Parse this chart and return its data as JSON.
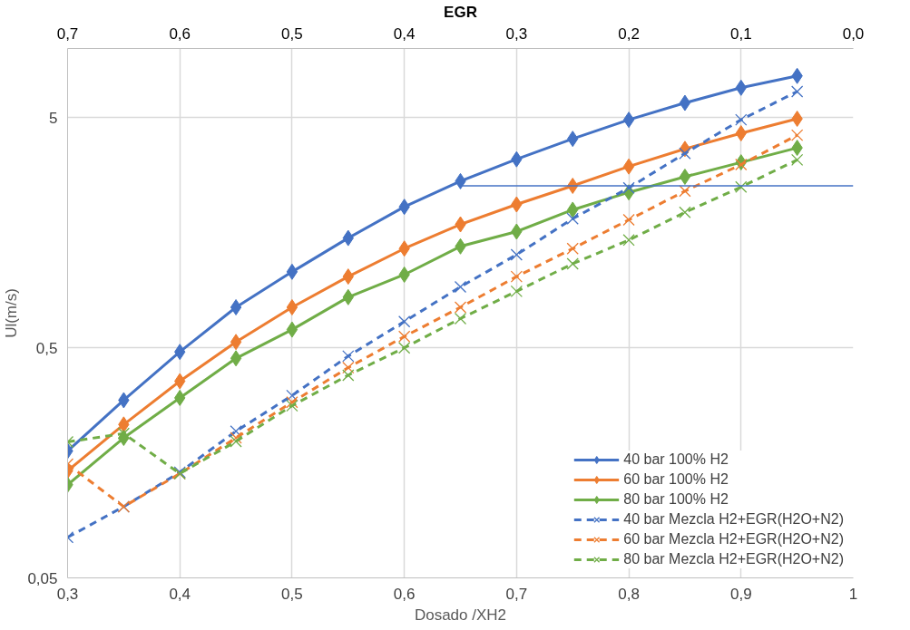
{
  "chart_data": {
    "type": "line",
    "xlabel": "Dosado /XH2",
    "ylabel": "Ul(m/s)",
    "x2label": "EGR",
    "x": [
      0.3,
      0.35,
      0.4,
      0.45,
      0.5,
      0.55,
      0.6,
      0.65,
      0.7,
      0.75,
      0.8,
      0.85,
      0.9,
      0.95
    ],
    "xlim": [
      0.3,
      1
    ],
    "xticks": [
      {
        "value": 0.3,
        "label": "0,3"
      },
      {
        "value": 0.4,
        "label": "0,4"
      },
      {
        "value": 0.5,
        "label": "0,5"
      },
      {
        "value": 0.6,
        "label": "0,6"
      },
      {
        "value": 0.7,
        "label": "0,7"
      },
      {
        "value": 0.8,
        "label": "0,8"
      },
      {
        "value": 0.9,
        "label": "0,9"
      },
      1
    ],
    "x2lim": [
      0.7,
      0.0
    ],
    "x2ticks": [
      {
        "value": 0.7,
        "label": "0,7"
      },
      {
        "value": 0.6,
        "label": "0,6"
      },
      {
        "value": 0.5,
        "label": "0,5"
      },
      {
        "value": 0.4,
        "label": "0,4"
      },
      {
        "value": 0.3,
        "label": "0,3"
      },
      {
        "value": 0.2,
        "label": "0,2"
      },
      {
        "value": 0.1,
        "label": "0,1"
      },
      {
        "value": 0.0,
        "label": "0,0"
      }
    ],
    "log": "y",
    "ylim": [
      0.05,
      10
    ],
    "yticks": [
      {
        "value": 0.05,
        "label": "0,05"
      },
      {
        "value": 0.5,
        "label": "0,5"
      },
      5
    ],
    "grid": true,
    "legend": "bottom right",
    "series": [
      {
        "name": "40 bar 100% H2",
        "color": "#4472c4",
        "marker": "diamond",
        "line_style": "solid",
        "values": [
          0.178,
          0.296,
          0.48,
          0.75,
          1.07,
          1.5,
          2.05,
          2.65,
          3.3,
          4.05,
          4.9,
          5.8,
          6.75,
          7.6
        ]
      },
      {
        "name": "60 bar 100% H2",
        "color": "#ed7d31",
        "marker": "diamond",
        "line_style": "solid",
        "values": [
          0.146,
          0.232,
          0.358,
          0.53,
          0.75,
          1.02,
          1.35,
          1.72,
          2.1,
          2.53,
          3.07,
          3.66,
          4.28,
          4.95
        ]
      },
      {
        "name": "80 bar 100% H2",
        "color": "#70ad47",
        "marker": "diamond",
        "line_style": "solid",
        "values": [
          0.127,
          0.203,
          0.303,
          0.45,
          0.6,
          0.83,
          1.04,
          1.38,
          1.6,
          1.99,
          2.37,
          2.77,
          3.2,
          3.7
        ]
      },
      {
        "name": "40 bar Mezcla H2+EGR(H2O+N2)",
        "color": "#4472c4",
        "marker": "cross",
        "line_style": "dashed",
        "values": [
          0.075,
          0.102,
          0.144,
          0.217,
          0.31,
          0.46,
          0.65,
          0.92,
          1.27,
          1.82,
          2.48,
          3.5,
          4.9,
          6.5
        ]
      },
      {
        "name": "60 bar Mezcla H2+EGR(H2O+N2)",
        "color": "#ed7d31",
        "marker": "cross",
        "line_style": "dashed",
        "values": [
          0.156,
          0.102,
          0.142,
          0.203,
          0.29,
          0.41,
          0.56,
          0.75,
          1.02,
          1.35,
          1.8,
          2.4,
          3.13,
          4.2
        ]
      },
      {
        "name": "80 bar Mezcla H2+EGR(H2O+N2)",
        "color": "#70ad47",
        "marker": "cross",
        "line_style": "dashed",
        "values": [
          0.195,
          0.212,
          0.142,
          0.196,
          0.28,
          0.38,
          0.5,
          0.67,
          0.88,
          1.16,
          1.47,
          1.94,
          2.5,
          3.28
        ]
      },
      {
        "color": "#4472c4",
        "marker": "none",
        "line_style": "solid",
        "x": [
          0.65,
          1
        ],
        "values": [
          2.53,
          2.53
        ]
      }
    ]
  }
}
